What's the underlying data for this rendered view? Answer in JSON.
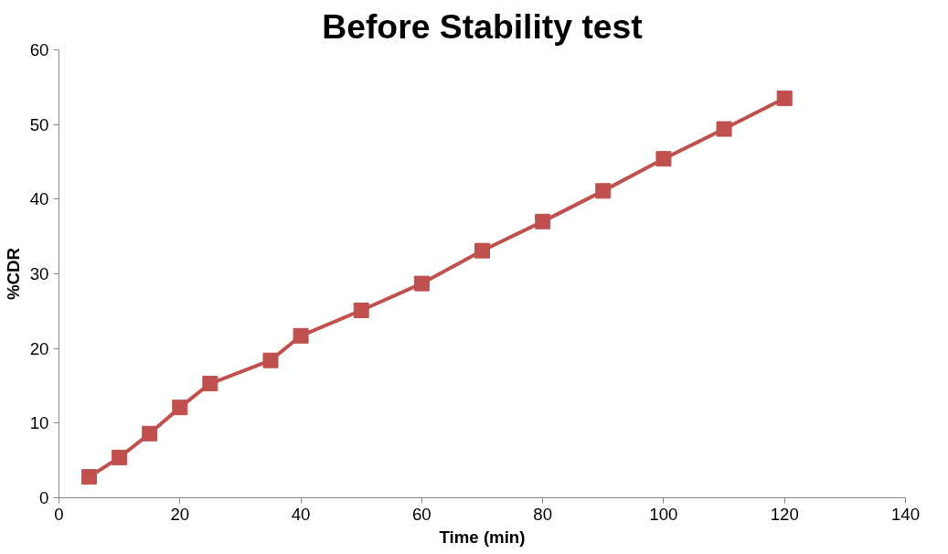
{
  "chart_data": {
    "type": "line",
    "title": "Before Stability test",
    "xlabel": "Time (min)",
    "ylabel": "%CDR",
    "x": [
      5,
      10,
      15,
      20,
      25,
      35,
      40,
      50,
      60,
      70,
      80,
      90,
      100,
      110,
      120
    ],
    "series": [
      {
        "color": "#c0504d",
        "values": [
          2.8,
          5.4,
          8.6,
          12.1,
          15.3,
          18.4,
          21.7,
          25.1,
          28.7,
          33.1,
          37.0,
          41.1,
          45.4,
          49.4,
          53.5
        ]
      }
    ],
    "xlim": [
      0,
      140
    ],
    "xticks": [
      0,
      20,
      40,
      60,
      80,
      100,
      120,
      140
    ],
    "ylim": [
      0,
      60
    ],
    "yticks": [
      0,
      10,
      20,
      30,
      40,
      50,
      60
    ],
    "grid": false,
    "marker": "square",
    "line_style": "solid"
  }
}
